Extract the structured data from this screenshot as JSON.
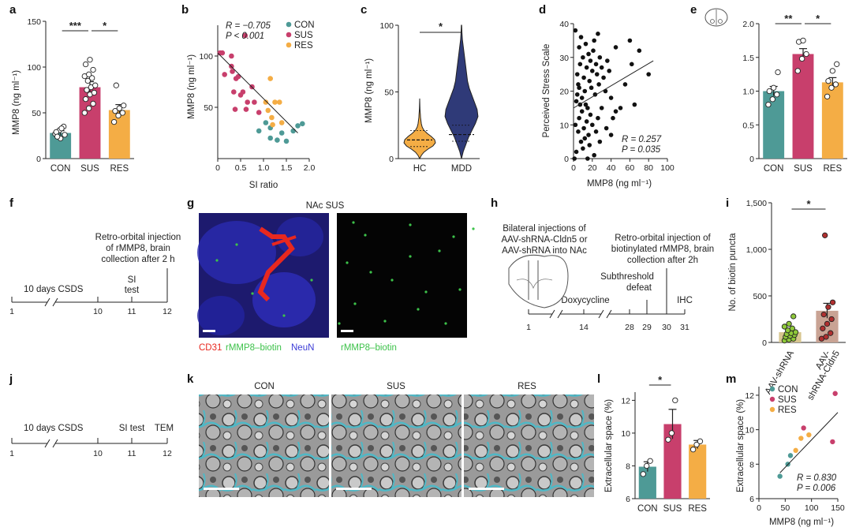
{
  "panel_letters": [
    "a",
    "b",
    "c",
    "d",
    "e",
    "f",
    "g",
    "h",
    "i",
    "j",
    "k",
    "l",
    "m"
  ],
  "colors": {
    "con": "#4e9a96",
    "sus": "#c83f6c",
    "res": "#f4ad45",
    "hc": "#f4ad45",
    "mdd": "#2f3a78",
    "cd31": "#e8281f",
    "rmmp8": "#3dc24a",
    "neun": "#3b3bd6",
    "ecs": "#4fb8c6"
  },
  "icons": [
    "brain-section-icon",
    "coronal-brain-icon"
  ],
  "chart_data": [
    {
      "panel": "a",
      "type": "bar",
      "categories": [
        "CON",
        "SUS",
        "RES"
      ],
      "values": [
        28,
        78,
        53
      ],
      "errors": [
        2.5,
        6,
        6
      ],
      "points": [
        [
          27,
          31,
          35,
          29,
          22,
          26,
          24,
          33
        ],
        [
          50,
          55,
          60,
          65,
          70,
          72,
          75,
          78,
          80,
          85,
          88,
          90,
          92,
          97,
          103,
          108
        ],
        [
          40,
          47,
          50,
          52,
          55,
          58,
          80
        ]
      ],
      "ylabel": "MMP8 (ng ml⁻¹)",
      "yticks": [
        "0",
        "50",
        "100",
        "150"
      ],
      "ylim": [
        0,
        150
      ],
      "significance": [
        {
          "pair": [
            "CON",
            "SUS"
          ],
          "label": "***"
        },
        {
          "pair": [
            "SUS",
            "RES"
          ],
          "label": "*"
        }
      ]
    },
    {
      "panel": "b",
      "type": "scatter",
      "xlabel": "SI ratio",
      "ylabel": "MMP8 (ng ml⁻¹)",
      "xticks": [
        "0",
        "0.5",
        "1.0",
        "1.5",
        "2.0"
      ],
      "yticks": [
        "50",
        "100"
      ],
      "xlim": [
        0,
        2
      ],
      "ylim": [
        0,
        130
      ],
      "legend": [
        "CON",
        "SUS",
        "RES"
      ],
      "annotation": [
        "R = −0.705",
        "P < 0.001"
      ],
      "series": [
        {
          "name": "CON",
          "points": [
            [
              0.9,
              27
            ],
            [
              1.05,
              35
            ],
            [
              1.15,
              30
            ],
            [
              1.3,
              18
            ],
            [
              1.4,
              25
            ],
            [
              1.5,
              17
            ],
            [
              1.65,
              27
            ],
            [
              1.75,
              32
            ],
            [
              1.85,
              34
            ],
            [
              1.15,
              20
            ]
          ]
        },
        {
          "name": "SUS",
          "points": [
            [
              0.05,
              103
            ],
            [
              0.1,
              103
            ],
            [
              0.15,
              82
            ],
            [
              0.3,
              90
            ],
            [
              0.32,
              85
            ],
            [
              0.35,
              65
            ],
            [
              0.38,
              48
            ],
            [
              0.4,
              78
            ],
            [
              0.45,
              80
            ],
            [
              0.5,
              62
            ],
            [
              0.55,
              65
            ],
            [
              0.6,
              120
            ],
            [
              0.62,
              48
            ],
            [
              0.65,
              55
            ],
            [
              0.75,
              70
            ],
            [
              0.8,
              55
            ],
            [
              0.9,
              45
            ],
            [
              0.3,
              100
            ]
          ]
        },
        {
          "name": "RES",
          "points": [
            [
              1.1,
              47
            ],
            [
              1.05,
              55
            ],
            [
              1.15,
              78
            ],
            [
              1.18,
              40
            ],
            [
              1.25,
              55
            ],
            [
              1.35,
              55
            ],
            [
              1.4,
              35
            ],
            [
              1.2,
              33
            ]
          ]
        }
      ],
      "fit": [
        [
          0,
          103
        ],
        [
          1.75,
          25
        ]
      ]
    },
    {
      "panel": "c",
      "type": "violin",
      "categories": [
        "HC",
        "MDD"
      ],
      "ylabel": "MMP8 (ng ml⁻¹)",
      "yticks": [
        "0",
        "50",
        "100"
      ],
      "ylim": [
        0,
        100
      ],
      "medians": [
        14,
        18
      ],
      "max": [
        45,
        100
      ],
      "significance": [
        {
          "pair": [
            "HC",
            "MDD"
          ],
          "label": "*"
        }
      ]
    },
    {
      "panel": "d",
      "type": "scatter",
      "xlabel": "MMP8 (ng ml⁻¹)",
      "ylabel": "Perceived Stress Scale",
      "xticks": [
        "0",
        "20",
        "40",
        "60",
        "80",
        "100"
      ],
      "yticks": [
        "0",
        "10",
        "20",
        "30",
        "40"
      ],
      "xlim": [
        0,
        100
      ],
      "ylim": [
        0,
        40
      ],
      "annotation": [
        "R = 0.257",
        "P = 0.035"
      ],
      "series": [
        {
          "name": "",
          "points": [
            [
              2,
              38
            ],
            [
              4,
              25
            ],
            [
              5,
              22
            ],
            [
              6,
              33
            ],
            [
              7,
              28
            ],
            [
              8,
              36
            ],
            [
              9,
              18
            ],
            [
              10,
              30
            ],
            [
              11,
              24
            ],
            [
              12,
              20
            ],
            [
              13,
              34
            ],
            [
              14,
              27
            ],
            [
              15,
              15
            ],
            [
              16,
              31
            ],
            [
              17,
              23
            ],
            [
              18,
              29
            ],
            [
              19,
              21
            ],
            [
              20,
              26
            ],
            [
              21,
              32
            ],
            [
              22,
              35
            ],
            [
              23,
              19
            ],
            [
              24,
              28
            ],
            [
              25,
              25
            ],
            [
              26,
              37
            ],
            [
              27,
              22
            ],
            [
              28,
              30
            ],
            [
              30,
              27
            ],
            [
              32,
              24
            ],
            [
              34,
              20
            ],
            [
              36,
              29
            ],
            [
              38,
              26
            ],
            [
              40,
              18
            ],
            [
              42,
              12
            ],
            [
              45,
              33
            ],
            [
              50,
              15
            ],
            [
              55,
              22
            ],
            [
              60,
              35
            ],
            [
              62,
              28
            ],
            [
              65,
              16
            ],
            [
              70,
              32
            ],
            [
              80,
              25
            ],
            [
              3,
              2
            ],
            [
              5,
              8
            ],
            [
              6,
              12
            ],
            [
              8,
              5
            ],
            [
              9,
              14
            ],
            [
              10,
              3
            ],
            [
              11,
              9
            ],
            [
              12,
              6
            ],
            [
              13,
              16
            ],
            [
              14,
              11
            ],
            [
              15,
              0
            ],
            [
              16,
              7
            ],
            [
              17,
              4
            ],
            [
              18,
              13
            ],
            [
              20,
              10
            ],
            [
              22,
              1
            ],
            [
              24,
              8
            ],
            [
              26,
              12
            ],
            [
              28,
              5
            ],
            [
              30,
              15
            ],
            [
              35,
              9
            ],
            [
              40,
              7
            ],
            [
              45,
              14
            ],
            [
              3,
              17
            ],
            [
              4,
              19
            ],
            [
              7,
              16
            ],
            [
              2,
              10
            ],
            [
              1,
              0
            ],
            [
              6,
              21
            ]
          ]
        }
      ],
      "fit": [
        [
          0,
          15
        ],
        [
          85,
          29
        ]
      ]
    },
    {
      "panel": "e",
      "type": "bar",
      "categories": [
        "CON",
        "SUS",
        "RES"
      ],
      "values": [
        1.0,
        1.55,
        1.13
      ],
      "errors": [
        0.07,
        0.08,
        0.07
      ],
      "points": [
        [
          0.8,
          0.88,
          0.95,
          1.0,
          1.05,
          1.28
        ],
        [
          1.3,
          1.48,
          1.55,
          1.73,
          1.75
        ],
        [
          0.92,
          1.05,
          1.1,
          1.15,
          1.3,
          1.4
        ]
      ],
      "ylabel": "MMP8 (normalized to total protein)",
      "yticks": [
        "0",
        "0.5",
        "1.0",
        "1.5",
        "2.0"
      ],
      "ylim": [
        0,
        2
      ],
      "significance": [
        {
          "pair": [
            "CON",
            "SUS"
          ],
          "label": "**"
        },
        {
          "pair": [
            "SUS",
            "RES"
          ],
          "label": "*"
        }
      ]
    },
    {
      "panel": "i",
      "type": "bar",
      "categories": [
        "AAV-shRNA",
        "AAV-shRNA-Cldn5"
      ],
      "values": [
        110,
        340
      ],
      "errors": [
        30,
        80
      ],
      "points": [
        [
          20,
          30,
          40,
          60,
          70,
          80,
          90,
          100,
          110,
          130,
          150,
          170,
          200,
          280
        ],
        [
          40,
          60,
          100,
          150,
          200,
          250,
          300,
          380,
          430,
          1150
        ]
      ],
      "ylabel": "No. of biotin puncta",
      "yticks": [
        "0",
        "500",
        "1,000",
        "1,500"
      ],
      "ylim": [
        0,
        1500
      ],
      "significance": [
        {
          "pair": [
            "AAV-shRNA",
            "AAV-shRNA-Cldn5"
          ],
          "label": "*"
        }
      ]
    },
    {
      "panel": "l",
      "type": "bar",
      "categories": [
        "CON",
        "SUS",
        "RES"
      ],
      "values": [
        7.95,
        10.55,
        9.3
      ],
      "errors": [
        0.3,
        0.9,
        0.25
      ],
      "points": [
        [
          7.5,
          8.0,
          8.3
        ],
        [
          9.6,
          10.0,
          12.0
        ],
        [
          9.0,
          9.3,
          9.5
        ]
      ],
      "ylabel": "Extracellular space (%)",
      "yticks": [
        "6",
        "8",
        "10",
        "12"
      ],
      "ylim": [
        6,
        12.5
      ],
      "significance": [
        {
          "pair": [
            "CON",
            "SUS"
          ],
          "label": "*"
        }
      ]
    },
    {
      "panel": "m",
      "type": "scatter",
      "xlabel": "MMP8 (ng ml⁻¹)",
      "ylabel": "Extracellular space (%)",
      "xticks": [
        "0",
        "50",
        "100",
        "150"
      ],
      "yticks": [
        "6",
        "8",
        "10",
        "12"
      ],
      "xlim": [
        0,
        150
      ],
      "ylim": [
        6,
        12.5
      ],
      "legend": [
        "CON",
        "SUS",
        "RES"
      ],
      "annotation": [
        "R = 0.830",
        "P = 0.006"
      ],
      "series": [
        {
          "name": "CON",
          "points": [
            [
              40,
              7.3
            ],
            [
              55,
              8.0
            ],
            [
              60,
              8.5
            ]
          ]
        },
        {
          "name": "SUS",
          "points": [
            [
              85,
              10.1
            ],
            [
              140,
              9.3
            ],
            [
              145,
              12.1
            ]
          ]
        },
        {
          "name": "RES",
          "points": [
            [
              70,
              8.8
            ],
            [
              80,
              9.5
            ],
            [
              95,
              9.7
            ]
          ]
        }
      ],
      "fit": [
        [
          40,
          7.5
        ],
        [
          150,
          11.0
        ]
      ]
    }
  ],
  "f": {
    "t10": "10 days CSDS",
    "si": "SI",
    "test": "test",
    "inj1": "Retro-orbital injection",
    "inj2": "of rMMP8, brain",
    "inj3": "collection after 2 h",
    "ticks": [
      "1",
      "10",
      "11",
      "12"
    ]
  },
  "g": {
    "title": "NAc SUS",
    "leg_cd31": "CD31",
    "leg_rmmp8": "rMMP8–biotin",
    "leg_neun": "NeuN",
    "leg2": "rMMP8–biotin"
  },
  "h": {
    "inj1": "Bilateral injections of",
    "inj2": "AAV-shRNA-Cldn5 or",
    "inj3": "AAV-shRNA into NAc",
    "ro1": "Retro-orbital injection of",
    "ro2": "biotinylated rMMP8, brain",
    "ro3": "collection after 2h",
    "sd1": "Subthreshold",
    "sd2": "defeat",
    "dox": "Doxycycline",
    "ihc": "IHC",
    "ticks": [
      "1",
      "14",
      "28",
      "29",
      "30",
      "31"
    ]
  },
  "j": {
    "t10": "10 days CSDS",
    "si": "SI test",
    "tem": "TEM",
    "ticks": [
      "1",
      "10",
      "11",
      "12"
    ]
  },
  "k": {
    "titles": [
      "CON",
      "SUS",
      "RES"
    ]
  }
}
